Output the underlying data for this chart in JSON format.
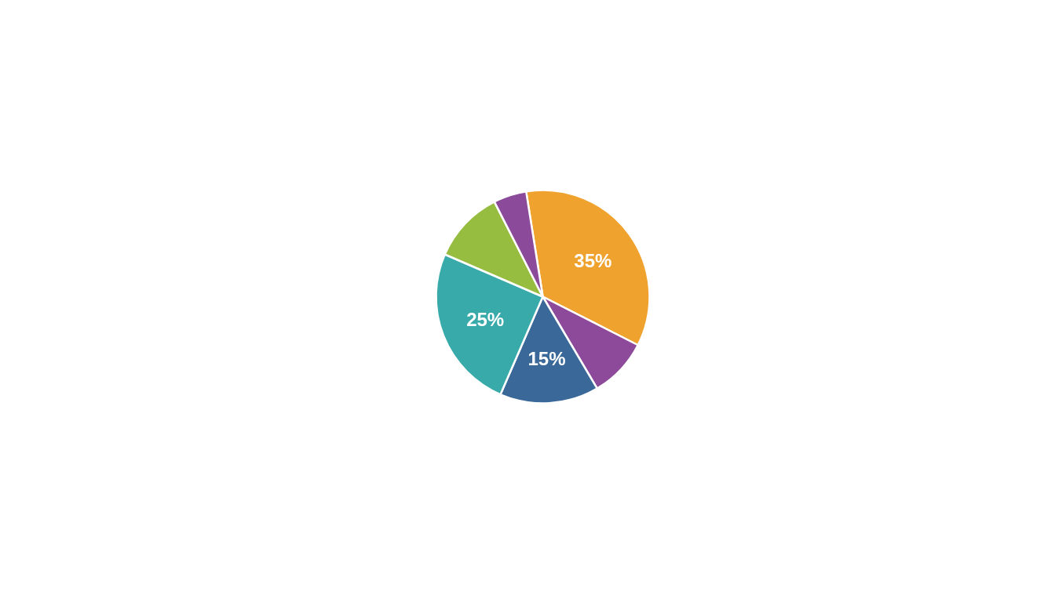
{
  "chart_data": {
    "type": "pie",
    "categories": [
      null,
      null,
      null,
      null,
      null,
      null
    ],
    "values": [
      35,
      9,
      15,
      25,
      11,
      5
    ],
    "colors": [
      "#f0a22e",
      "#8e4a9a",
      "#3a6899",
      "#37aaa9",
      "#96bc40",
      "#8b4b9a"
    ],
    "value_labels": [
      "35%",
      null,
      "15%",
      "25%",
      null,
      null
    ]
  }
}
